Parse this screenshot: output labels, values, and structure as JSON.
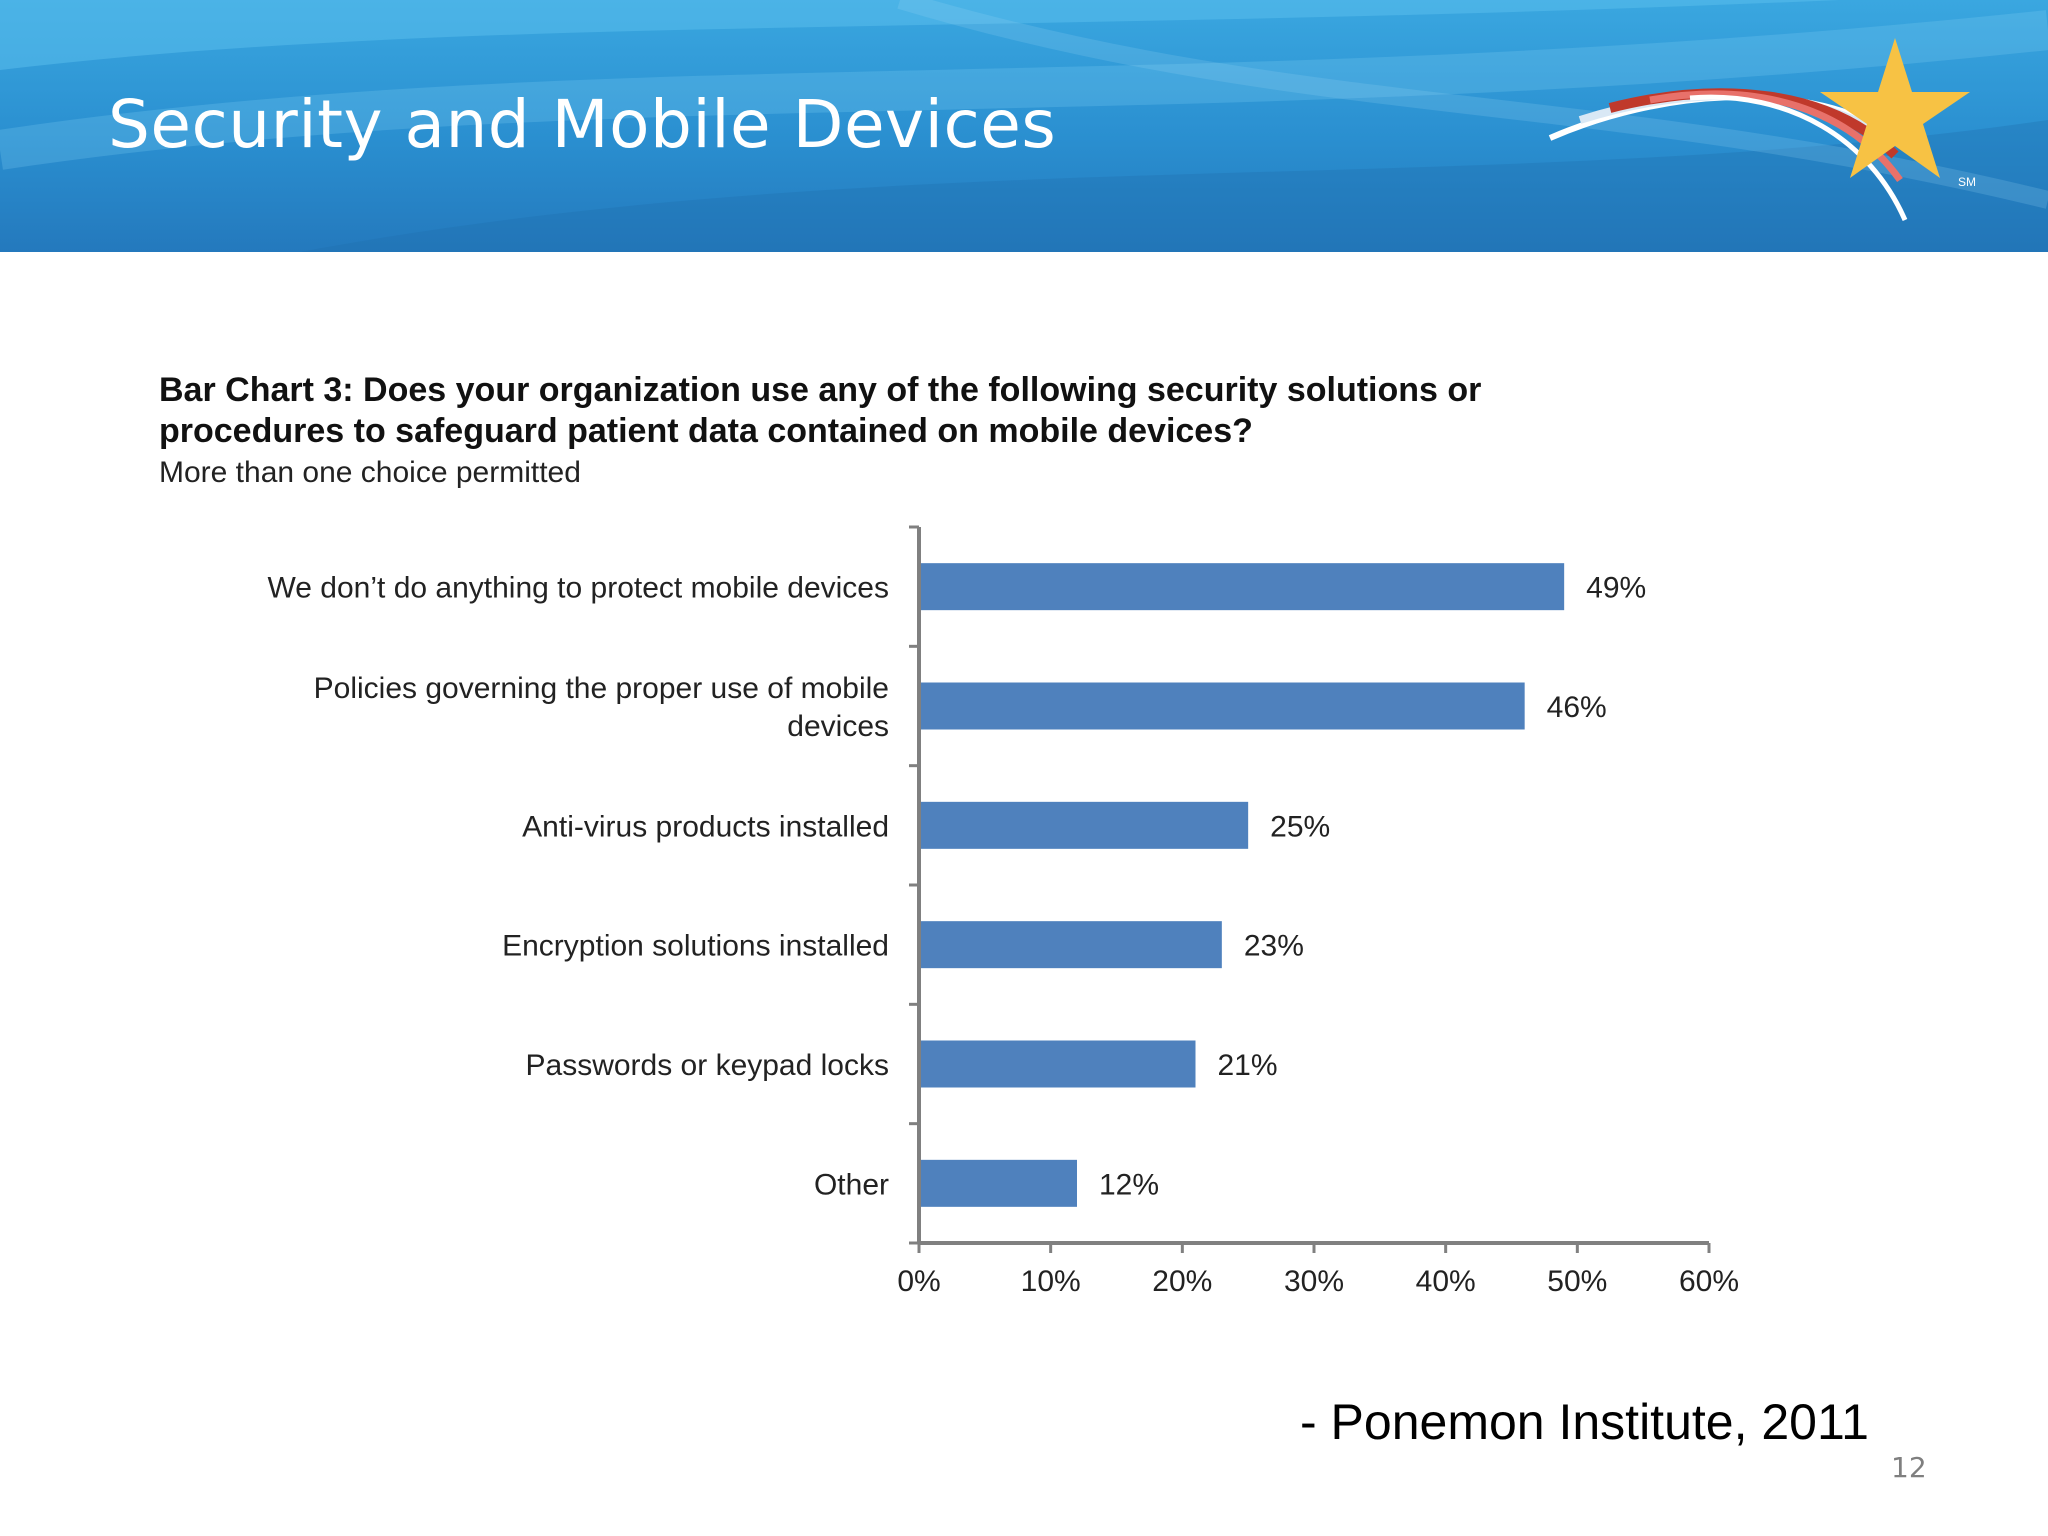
{
  "slide": {
    "title": "Security and Mobile Devices",
    "source": "- Ponemon Institute, 2011",
    "page_number": "12",
    "logo_mark": "SM"
  },
  "colors": {
    "header": "#2a8fd0",
    "bar": "#4f81bd",
    "axis": "#808080",
    "star": "#f7c244"
  },
  "chart_data": {
    "type": "bar",
    "orientation": "horizontal",
    "title_line1": "Bar Chart 3: Does your organization use any of the following security solutions or",
    "title_line2": "procedures to safeguard patient data contained on mobile devices?",
    "subtitle": "More than one choice permitted",
    "categories": [
      [
        "We don’t do anything to protect mobile devices"
      ],
      [
        "Policies governing the proper use of mobile",
        "devices"
      ],
      [
        "Anti-virus products installed"
      ],
      [
        "Encryption solutions installed"
      ],
      [
        "Passwords or keypad locks"
      ],
      [
        "Other"
      ]
    ],
    "values": [
      49,
      46,
      25,
      23,
      21,
      12
    ],
    "value_labels": [
      "49%",
      "46%",
      "25%",
      "23%",
      "21%",
      "12%"
    ],
    "xlim": [
      0,
      60
    ],
    "xticks": [
      0,
      10,
      20,
      30,
      40,
      50,
      60
    ],
    "xtick_labels": [
      "0%",
      "10%",
      "20%",
      "30%",
      "40%",
      "50%",
      "60%"
    ],
    "grid": false
  }
}
